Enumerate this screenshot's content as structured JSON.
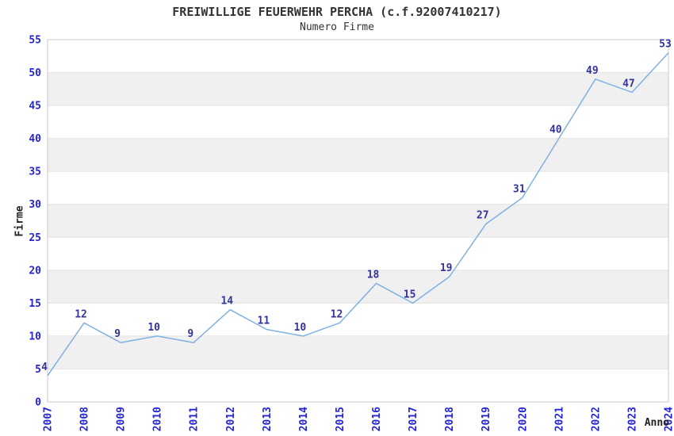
{
  "chart_data": {
    "type": "line",
    "title": "FREIWILLIGE FEUERWEHR PERCHA (c.f.92007410217)",
    "subtitle": "Numero Firme",
    "xlabel": "Anno",
    "ylabel": "Firme",
    "categories": [
      "2007",
      "2008",
      "2009",
      "2010",
      "2011",
      "2012",
      "2013",
      "2014",
      "2015",
      "2016",
      "2017",
      "2018",
      "2019",
      "2020",
      "2021",
      "2022",
      "2023",
      "2024"
    ],
    "values": [
      4,
      12,
      9,
      10,
      9,
      14,
      11,
      10,
      12,
      18,
      15,
      19,
      27,
      31,
      40,
      49,
      47,
      53
    ],
    "ylim": [
      0,
      55
    ],
    "ytick_step": 5,
    "grid": "horizontal-bands-alternating",
    "legend": "none",
    "point_labels_shown": true,
    "colors": {
      "line": "#7fb0e2",
      "tick_labels": "#2424d6",
      "point_labels": "#333399",
      "band": "#f0f0f0",
      "gridline": "#e3e3e3",
      "border": "#c9c9c9",
      "title_text": "#333333",
      "axis_label_text": "#222222",
      "background": "#ffffff"
    }
  }
}
